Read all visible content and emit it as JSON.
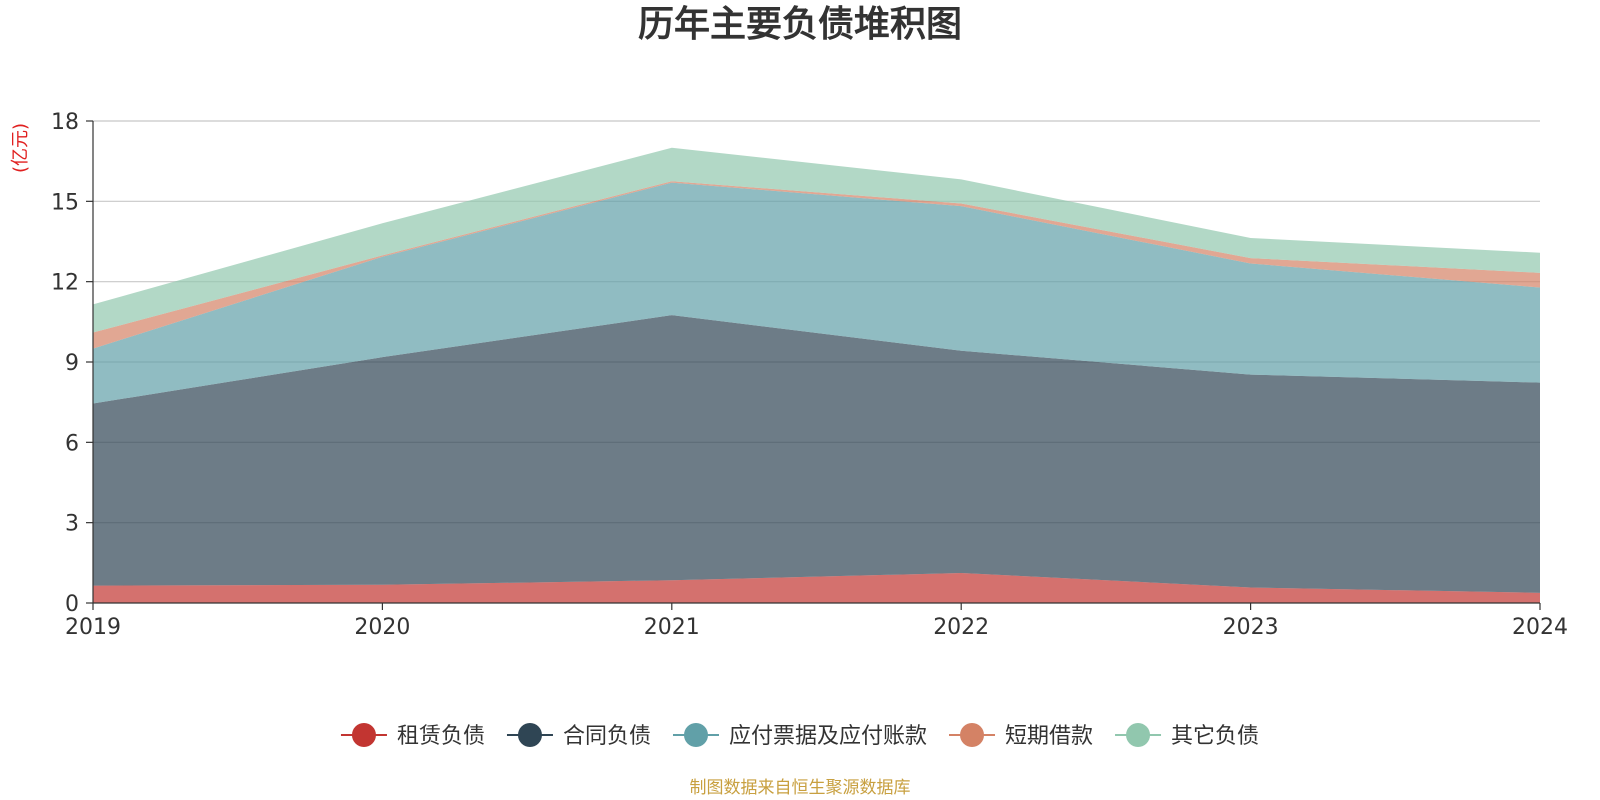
{
  "chart_data": {
    "type": "area",
    "stacked": true,
    "title": "历年主要负债堆积图",
    "unit_label": "(亿元)",
    "x": [
      "2019",
      "2020",
      "2021",
      "2022",
      "2023",
      "2024"
    ],
    "ylim": [
      0,
      18
    ],
    "yticks": [
      "0",
      "3",
      "6",
      "9",
      "12",
      "15",
      "18"
    ],
    "grid": true,
    "legend_position": "bottom",
    "series": [
      {
        "name": "租赁负债",
        "color": "#c23531",
        "values": [
          0.65,
          0.68,
          0.85,
          1.12,
          0.58,
          0.38
        ]
      },
      {
        "name": "合同负债",
        "color": "#2f4554",
        "values": [
          6.8,
          8.5,
          9.9,
          8.3,
          7.95,
          7.85
        ]
      },
      {
        "name": "应付票据及应付账款",
        "color": "#61a0a8",
        "values": [
          2.05,
          3.75,
          4.95,
          5.4,
          4.15,
          3.55
        ]
      },
      {
        "name": "短期借款",
        "color": "#d48265",
        "values": [
          0.6,
          0.05,
          0.05,
          0.1,
          0.2,
          0.55
        ]
      },
      {
        "name": "其它负债",
        "color": "#91c7ae",
        "values": [
          1.05,
          1.2,
          1.25,
          0.9,
          0.75,
          0.75
        ]
      }
    ],
    "source_note": "制图数据来自恒生聚源数据库"
  }
}
